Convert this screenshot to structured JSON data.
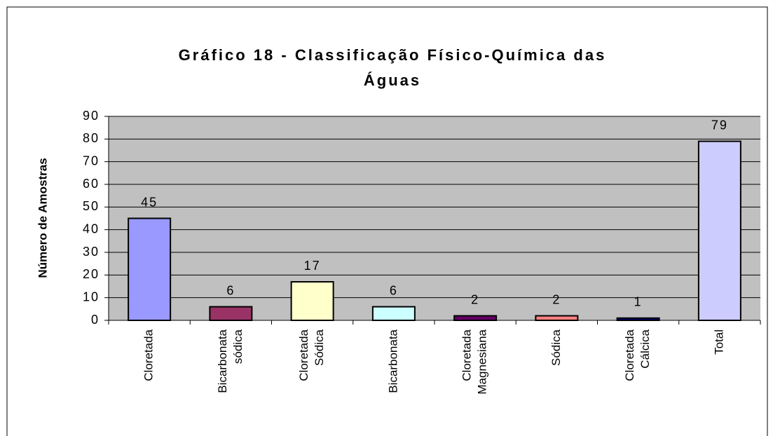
{
  "chart_data": {
    "type": "bar",
    "title": [
      "Gráfico 18 - Classificação Físico-Química das",
      "Águas"
    ],
    "y_label": "Número de Amostras",
    "categories": [
      [
        "Cloretada"
      ],
      [
        "Bicarbonata",
        "sódica"
      ],
      [
        "Cloretada",
        "Sódica"
      ],
      [
        "Bicarbonata"
      ],
      [
        "Cloretada",
        "Magnesiana"
      ],
      [
        "Sódica"
      ],
      [
        "Cloretada",
        "Cálcica"
      ],
      [
        "Total"
      ]
    ],
    "values": [
      45,
      6,
      17,
      6,
      2,
      2,
      1,
      79
    ],
    "colors": [
      "#9999ff",
      "#993366",
      "#ffffcc",
      "#ccffff",
      "#660066",
      "#ff8080",
      "#000080",
      "#ccccff"
    ],
    "ylim": [
      0,
      90
    ],
    "yticks": [
      0,
      10,
      20,
      30,
      40,
      50,
      60,
      70,
      80,
      90
    ],
    "grid": true
  }
}
